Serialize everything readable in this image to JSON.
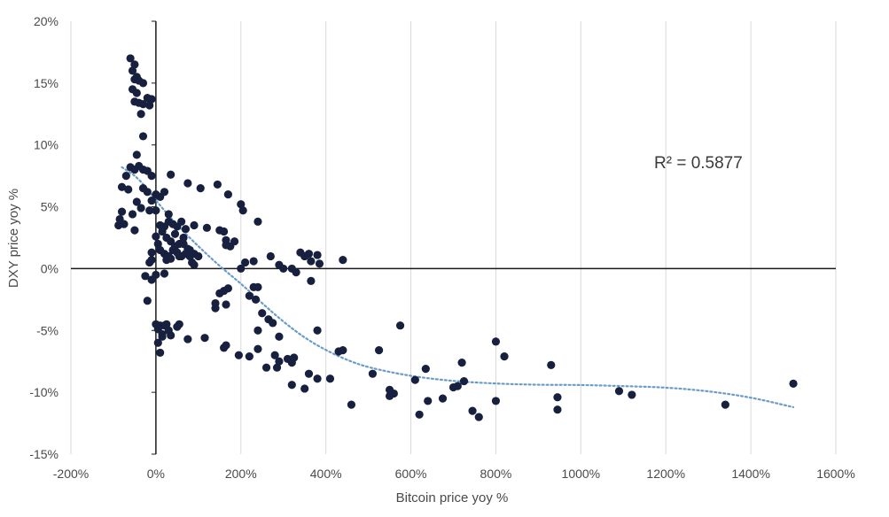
{
  "chart_data": {
    "type": "scatter",
    "title": "",
    "xlabel": "Bitcoin price yoy %",
    "ylabel": "DXY price yoy %",
    "xlim": [
      -200,
      1600
    ],
    "ylim": [
      -15,
      20
    ],
    "x_ticks": [
      -200,
      0,
      200,
      400,
      600,
      800,
      1000,
      1200,
      1400,
      1600
    ],
    "x_tick_labels": [
      "-200%",
      "0%",
      "200%",
      "400%",
      "600%",
      "800%",
      "1000%",
      "1200%",
      "1400%",
      "1600%"
    ],
    "y_ticks": [
      -15,
      -10,
      -5,
      0,
      5,
      10,
      15,
      20
    ],
    "y_tick_labels": [
      "-15%",
      "-10%",
      "-5%",
      "0%",
      "5%",
      "10%",
      "15%",
      "20%"
    ],
    "grid": "vertical",
    "legend": "none",
    "annotation": "R² = 0.5877",
    "colors": {
      "points": "#17203f",
      "trend": "#6b9cc8",
      "grid": "#d9d9d9",
      "axis": "#1a1a1a"
    },
    "series": [
      {
        "points": [
          [
            -60,
            17
          ],
          [
            -50,
            16.5
          ],
          [
            -55,
            16
          ],
          [
            -45,
            15.5
          ],
          [
            -50,
            15.3
          ],
          [
            -40,
            15.2
          ],
          [
            -30,
            15
          ],
          [
            -55,
            14.5
          ],
          [
            -45,
            14.2
          ],
          [
            -20,
            13.8
          ],
          [
            -10,
            13.7
          ],
          [
            -50,
            13.5
          ],
          [
            -40,
            13.4
          ],
          [
            -30,
            13.3
          ],
          [
            -15,
            13.2
          ],
          [
            -35,
            12.5
          ],
          [
            -30,
            10.7
          ],
          [
            -45,
            9.2
          ],
          [
            -60,
            8.2
          ],
          [
            -50,
            8
          ],
          [
            -40,
            8.3
          ],
          [
            -30,
            8
          ],
          [
            -20,
            7.9
          ],
          [
            -10,
            7.5
          ],
          [
            -70,
            7.5
          ],
          [
            -80,
            6.6
          ],
          [
            -65,
            6.4
          ],
          [
            -30,
            6.5
          ],
          [
            -20,
            6.2
          ],
          [
            0,
            6
          ],
          [
            10,
            5.8
          ],
          [
            20,
            6.2
          ],
          [
            -10,
            5.5
          ],
          [
            -45,
            5.4
          ],
          [
            -35,
            4.9
          ],
          [
            -15,
            4.7
          ],
          [
            -55,
            4.4
          ],
          [
            -80,
            4.6
          ],
          [
            -85,
            4
          ],
          [
            -88,
            3.5
          ],
          [
            -75,
            3.6
          ],
          [
            -50,
            3.1
          ],
          [
            0,
            4.7
          ],
          [
            10,
            3.5
          ],
          [
            20,
            3.4
          ],
          [
            30,
            3.8
          ],
          [
            40,
            3.6
          ],
          [
            50,
            3.4
          ],
          [
            60,
            3.8
          ],
          [
            70,
            3.2
          ],
          [
            30,
            4.4
          ],
          [
            15,
            3
          ],
          [
            25,
            2.5
          ],
          [
            35,
            2.2
          ],
          [
            45,
            2.8
          ],
          [
            55,
            2
          ],
          [
            65,
            2.5
          ],
          [
            0,
            2.6
          ],
          [
            5,
            2
          ],
          [
            10,
            1.5
          ],
          [
            20,
            1.2
          ],
          [
            30,
            1
          ],
          [
            40,
            1.5
          ],
          [
            50,
            1.3
          ],
          [
            60,
            1
          ],
          [
            70,
            1.2
          ],
          [
            80,
            1.5
          ],
          [
            90,
            1.2
          ],
          [
            100,
            1
          ],
          [
            -10,
            1.3
          ],
          [
            -15,
            0.5
          ],
          [
            -10,
            0.7
          ],
          [
            25,
            0.7
          ],
          [
            35,
            0.8
          ],
          [
            45,
            1.8
          ],
          [
            55,
            1
          ],
          [
            65,
            2
          ],
          [
            75,
            1.6
          ],
          [
            80,
            1
          ],
          [
            85,
            0.5
          ],
          [
            90,
            0.3
          ],
          [
            35,
            7.6
          ],
          [
            75,
            6.9
          ],
          [
            105,
            6.5
          ],
          [
            145,
            6.8
          ],
          [
            170,
            6
          ],
          [
            200,
            5.2
          ],
          [
            205,
            4.7
          ],
          [
            240,
            3.8
          ],
          [
            90,
            3.5
          ],
          [
            120,
            3.3
          ],
          [
            150,
            3.1
          ],
          [
            160,
            3
          ],
          [
            165,
            2.3
          ],
          [
            165,
            1.9
          ],
          [
            175,
            1.8
          ],
          [
            185,
            2.2
          ],
          [
            210,
            0.5
          ],
          [
            230,
            0.6
          ],
          [
            270,
            1
          ],
          [
            290,
            0.3
          ],
          [
            300,
            0
          ],
          [
            320,
            0
          ],
          [
            330,
            -0.3
          ],
          [
            340,
            1.3
          ],
          [
            350,
            1
          ],
          [
            360,
            1.2
          ],
          [
            365,
            0.6
          ],
          [
            380,
            1.1
          ],
          [
            385,
            0.4
          ],
          [
            440,
            0.7
          ],
          [
            200,
            0
          ],
          [
            230,
            -1.5
          ],
          [
            240,
            -1.5
          ],
          [
            220,
            -2.2
          ],
          [
            235,
            -2.5
          ],
          [
            170,
            -1.6
          ],
          [
            160,
            -1.8
          ],
          [
            150,
            -2
          ],
          [
            -25,
            -0.6
          ],
          [
            -10,
            -0.9
          ],
          [
            0,
            -0.5
          ],
          [
            -20,
            -2.6
          ],
          [
            20,
            -0.4
          ],
          [
            140,
            -2.8
          ],
          [
            140,
            -3.2
          ],
          [
            165,
            -2.9
          ],
          [
            250,
            -3.6
          ],
          [
            265,
            -4.1
          ],
          [
            275,
            -4.4
          ],
          [
            240,
            -5
          ],
          [
            290,
            -5.5
          ],
          [
            365,
            -1
          ],
          [
            0,
            -4.5
          ],
          [
            10,
            -4.6
          ],
          [
            5,
            -4.9
          ],
          [
            15,
            -5.3
          ],
          [
            20,
            -4.6
          ],
          [
            25,
            -4.5
          ],
          [
            30,
            -5
          ],
          [
            35,
            -5.4
          ],
          [
            50,
            -4.7
          ],
          [
            55,
            -4.5
          ],
          [
            5,
            -6
          ],
          [
            10,
            -6.8
          ],
          [
            15,
            -5.5
          ],
          [
            75,
            -5.7
          ],
          [
            115,
            -5.6
          ],
          [
            160,
            -6.4
          ],
          [
            165,
            -6.2
          ],
          [
            195,
            -7
          ],
          [
            220,
            -7.1
          ],
          [
            240,
            -6.5
          ],
          [
            260,
            -8
          ],
          [
            280,
            -7
          ],
          [
            285,
            -8
          ],
          [
            290,
            -7.5
          ],
          [
            310,
            -7.3
          ],
          [
            320,
            -7.6
          ],
          [
            325,
            -7.2
          ],
          [
            320,
            -9.4
          ],
          [
            350,
            -9.7
          ],
          [
            360,
            -8.5
          ],
          [
            380,
            -8.9
          ],
          [
            410,
            -8.9
          ],
          [
            430,
            -6.7
          ],
          [
            440,
            -6.6
          ],
          [
            380,
            -5
          ],
          [
            460,
            -11
          ],
          [
            510,
            -8.5
          ],
          [
            525,
            -6.6
          ],
          [
            550,
            -9.8
          ],
          [
            550,
            -10.3
          ],
          [
            560,
            -10.1
          ],
          [
            575,
            -4.6
          ],
          [
            610,
            -9
          ],
          [
            620,
            -11.8
          ],
          [
            635,
            -8.1
          ],
          [
            640,
            -10.7
          ],
          [
            675,
            -10.5
          ],
          [
            700,
            -9.6
          ],
          [
            710,
            -9.5
          ],
          [
            720,
            -7.6
          ],
          [
            725,
            -9.1
          ],
          [
            745,
            -11.5
          ],
          [
            760,
            -12
          ],
          [
            800,
            -5.9
          ],
          [
            800,
            -10.7
          ],
          [
            820,
            -7.1
          ],
          [
            930,
            -7.8
          ],
          [
            945,
            -10.4
          ],
          [
            945,
            -11.4
          ],
          [
            1090,
            -9.9
          ],
          [
            1120,
            -10.2
          ],
          [
            1340,
            -11
          ],
          [
            1500,
            -9.3
          ]
        ]
      }
    ],
    "trendline": {
      "points": [
        [
          -80,
          8.2
        ],
        [
          -40,
          7.3
        ],
        [
          0,
          5.5
        ],
        [
          50,
          3.5
        ],
        [
          100,
          1.8
        ],
        [
          150,
          0.2
        ],
        [
          200,
          -1.2
        ],
        [
          250,
          -2.8
        ],
        [
          300,
          -4.3
        ],
        [
          350,
          -5.6
        ],
        [
          400,
          -6.6
        ],
        [
          450,
          -7.4
        ],
        [
          500,
          -8
        ],
        [
          600,
          -8.7
        ],
        [
          700,
          -9.1
        ],
        [
          800,
          -9.3
        ],
        [
          900,
          -9.4
        ],
        [
          1000,
          -9.4
        ],
        [
          1100,
          -9.5
        ],
        [
          1200,
          -9.6
        ],
        [
          1300,
          -9.9
        ],
        [
          1400,
          -10.4
        ],
        [
          1500,
          -11.2
        ]
      ]
    }
  }
}
